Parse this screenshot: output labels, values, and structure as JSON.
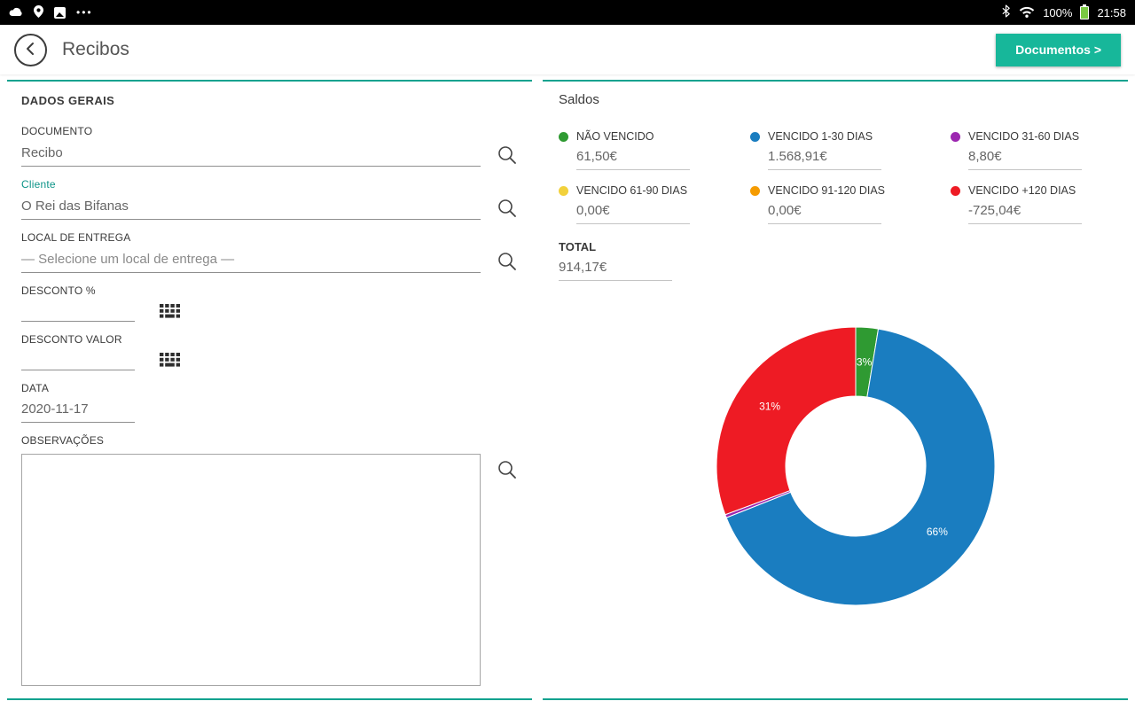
{
  "colors": {
    "accent": "#17b79a",
    "accent_border": "#10a28f",
    "cliente_label": "#0d9488",
    "status_bar_bg": "#000000"
  },
  "status_bar": {
    "time": "21:58",
    "battery_percent": "100%",
    "more_label": "•••"
  },
  "header": {
    "title": "Recibos",
    "documents_button_label": "Documentos >"
  },
  "general": {
    "section_title": "DADOS GERAIS",
    "fields": {
      "documento": {
        "label": "DOCUMENTO",
        "value": "Recibo"
      },
      "cliente": {
        "label": "Cliente",
        "value": "O Rei das Bifanas"
      },
      "local": {
        "label": "LOCAL DE ENTREGA",
        "value": "— Selecione um local de entrega —"
      },
      "desconto_pct": {
        "label": "DESCONTO %",
        "value": ""
      },
      "desconto_valor": {
        "label": "DESCONTO VALOR",
        "value": ""
      },
      "data": {
        "label": "DATA",
        "value": "2020-11-17"
      },
      "observacoes": {
        "label": "OBSERVAÇÕES",
        "value": ""
      }
    }
  },
  "saldos": {
    "section_title": "Saldos",
    "legend": [
      {
        "label": "NÃO VENCIDO",
        "value": "61,50€",
        "color": "#2f9a32"
      },
      {
        "label": "VENCIDO 1-30 DIAS",
        "value": "1.568,91€",
        "color": "#1a7dc0"
      },
      {
        "label": "VENCIDO 31-60 DIAS",
        "value": "8,80€",
        "color": "#9c27b0"
      },
      {
        "label": "VENCIDO 61-90 DIAS",
        "value": "0,00€",
        "color": "#f2d13c"
      },
      {
        "label": "VENCIDO 91-120 DIAS",
        "value": "0,00€",
        "color": "#f59b00"
      },
      {
        "label": "VENCIDO +120 DIAS",
        "value": "-725,04€",
        "color": "#ee1b24"
      }
    ],
    "total_label": "TOTAL",
    "total_value": "914,17€"
  },
  "chart_data": {
    "type": "pie",
    "subtype": "donut",
    "title": "Saldos",
    "labels": [
      "NÃO VENCIDO",
      "VENCIDO 1-30 DIAS",
      "VENCIDO 31-60 DIAS",
      "VENCIDO 61-90 DIAS",
      "VENCIDO 91-120 DIAS",
      "VENCIDO +120 DIAS"
    ],
    "values": [
      61.5,
      1568.91,
      8.8,
      0.0,
      0.0,
      725.04
    ],
    "display_values": [
      "61,50€",
      "1.568,91€",
      "8,80€",
      "0,00€",
      "0,00€",
      "-725,04€"
    ],
    "percent_labels": [
      "3%",
      "66%",
      "",
      "",
      "",
      "31%"
    ],
    "colors": [
      "#2f9a32",
      "#1a7dc0",
      "#9c27b0",
      "#f2d13c",
      "#f59b00",
      "#ee1b24"
    ],
    "total_display": "914,17€",
    "legend_position": "top",
    "start_angle_deg": 0,
    "direction": "clockwise"
  }
}
